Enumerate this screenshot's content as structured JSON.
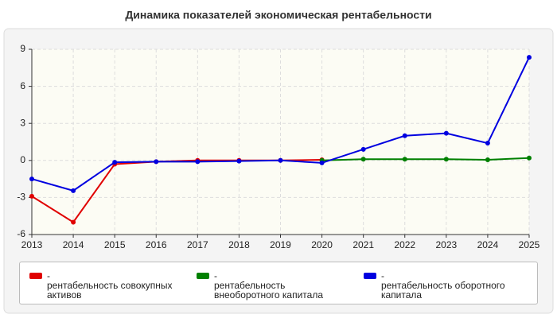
{
  "chart_data": {
    "type": "line",
    "title": "Динамика показателей экономическая рентабельности",
    "x": [
      2013,
      2014,
      2015,
      2016,
      2017,
      2018,
      2019,
      2020,
      2021,
      2022,
      2023,
      2024,
      2025
    ],
    "series": [
      {
        "name": "рентабельность совокупных активов",
        "color": "#e00000",
        "values": [
          -2.9,
          -5.0,
          -0.3,
          -0.1,
          0,
          0,
          0,
          0.05,
          null,
          null,
          null,
          null,
          null
        ]
      },
      {
        "name": "рентабельность внеоборотного капитала",
        "color": "#008000",
        "values": [
          null,
          null,
          null,
          null,
          null,
          null,
          null,
          0,
          0.1,
          0.1,
          0.1,
          0.05,
          0.2
        ]
      },
      {
        "name": "рентабельность оборотного капитала",
        "color": "#0000e0",
        "values": [
          -1.5,
          -2.45,
          -0.15,
          -0.1,
          -0.1,
          -0.05,
          0,
          -0.2,
          0.9,
          2.0,
          2.2,
          1.4,
          8.35
        ]
      }
    ],
    "xlim": [
      2013,
      2025
    ],
    "xticks": [
      2013,
      2014,
      2015,
      2016,
      2017,
      2018,
      2019,
      2020,
      2021,
      2022,
      2023,
      2024,
      2025
    ],
    "ylim": [
      -6,
      9
    ],
    "yticks": [
      -6,
      -3,
      0,
      3,
      6,
      9
    ],
    "grid": true
  }
}
